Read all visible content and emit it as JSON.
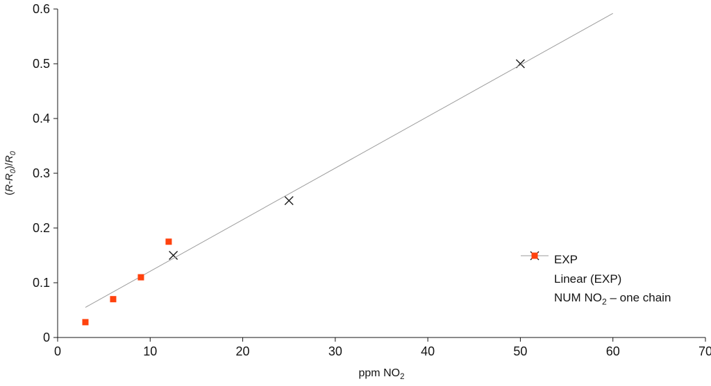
{
  "chart_data": {
    "type": "scatter",
    "title": "",
    "xlabel_parts": [
      {
        "t": "ppm NO"
      },
      {
        "t": "2",
        "sub": true
      }
    ],
    "ylabel_parts": [
      {
        "t": "("
      },
      {
        "t": "R",
        "i": true
      },
      {
        "t": "-"
      },
      {
        "t": "R",
        "i": true
      },
      {
        "t": "0",
        "sub": true
      },
      {
        "t": ")/"
      },
      {
        "t": "R",
        "i": true
      },
      {
        "t": "0",
        "sub": true
      }
    ],
    "xlim": [
      0,
      70
    ],
    "ylim": [
      0,
      0.6
    ],
    "grid": false,
    "legend_position": "right-center",
    "axis_color": "#141414",
    "xticks": [
      {
        "v": 0,
        "label": "0"
      },
      {
        "v": 10,
        "label": "10"
      },
      {
        "v": 20,
        "label": "20"
      },
      {
        "v": 30,
        "label": "30"
      },
      {
        "v": 40,
        "label": "40"
      },
      {
        "v": 50,
        "label": "50"
      },
      {
        "v": 60,
        "label": "60"
      },
      {
        "v": 70,
        "label": "70"
      }
    ],
    "yticks": [
      {
        "v": 0,
        "label": "0"
      },
      {
        "v": 0.1,
        "label": "0.1"
      },
      {
        "v": 0.2,
        "label": "0.2"
      },
      {
        "v": 0.3,
        "label": "0.3"
      },
      {
        "v": 0.4,
        "label": "0.4"
      },
      {
        "v": 0.5,
        "label": "0.5"
      },
      {
        "v": 0.6,
        "label": "0.6"
      }
    ],
    "series": [
      {
        "name": "EXP",
        "kind": "scatter",
        "marker": "x",
        "color": "#1a1a1a",
        "points": [
          [
            12.5,
            0.15
          ],
          [
            25,
            0.25
          ],
          [
            50,
            0.5
          ]
        ],
        "label_parts": [
          {
            "t": "EXP"
          }
        ]
      },
      {
        "name": "Linear (EXP)",
        "kind": "line",
        "marker": "line",
        "color": "#9b9b9b",
        "points": [
          [
            3,
            0.055
          ],
          [
            60,
            0.592
          ]
        ],
        "label_parts": [
          {
            "t": "Linear (EXP)"
          }
        ]
      },
      {
        "name": "NUM NO2 – one chain",
        "kind": "scatter",
        "marker": "square",
        "color": "#ff420e",
        "points": [
          [
            3,
            0.028
          ],
          [
            6,
            0.07
          ],
          [
            9,
            0.11
          ],
          [
            12,
            0.175
          ]
        ],
        "label_parts": [
          {
            "t": "NUM NO"
          },
          {
            "t": "2",
            "sub": true
          },
          {
            "t": " – one chain"
          }
        ]
      }
    ]
  }
}
